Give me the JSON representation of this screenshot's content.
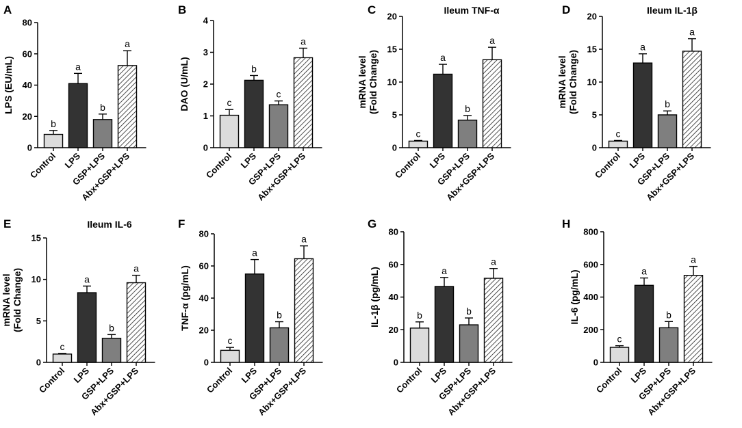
{
  "figure": {
    "categories": [
      "Control",
      "LPS",
      "GSP+LPS",
      "Abx+GSP+LPS"
    ],
    "bar_fills": [
      "#dcdcdc",
      "#333333",
      "#7f7f7f",
      "hatch"
    ],
    "hatch_color": "#222222"
  },
  "chart_data": [
    {
      "type": "bar",
      "letter": "A",
      "title": "",
      "ylabel": [
        "LPS (EU/mL)"
      ],
      "categories": [
        "Control",
        "LPS",
        "GSP+LPS",
        "Abx+GSP+LPS"
      ],
      "values": [
        8.5,
        41,
        18,
        52.5
      ],
      "errors": [
        2.5,
        6.5,
        3.5,
        9.5
      ],
      "letters": [
        "b",
        "a",
        "b",
        "a"
      ],
      "ylim": [
        0,
        80
      ],
      "yticks": [
        0,
        20,
        40,
        60,
        80
      ]
    },
    {
      "type": "bar",
      "letter": "B",
      "title": "",
      "ylabel": [
        "DAO (U/mL)"
      ],
      "categories": [
        "Control",
        "LPS",
        "GSP+LPS",
        "Abx+GSP+LPS"
      ],
      "values": [
        1.02,
        2.12,
        1.35,
        2.83
      ],
      "errors": [
        0.18,
        0.15,
        0.12,
        0.3
      ],
      "letters": [
        "c",
        "b",
        "c",
        "a"
      ],
      "ylim": [
        0,
        4
      ],
      "yticks": [
        0,
        1,
        2,
        3,
        4
      ]
    },
    {
      "type": "bar",
      "letter": "C",
      "title": "Ileum TNF-α",
      "ylabel": [
        "mRNA level",
        "(Fold Change)"
      ],
      "categories": [
        "Control",
        "LPS",
        "GSP+LPS",
        "Abx+GSP+LPS"
      ],
      "values": [
        1,
        11.2,
        4.2,
        13.4
      ],
      "errors": [
        0.1,
        1.5,
        0.7,
        1.9
      ],
      "letters": [
        "c",
        "a",
        "b",
        "a"
      ],
      "ylim": [
        0,
        20
      ],
      "yticks": [
        0,
        5,
        10,
        15,
        20
      ]
    },
    {
      "type": "bar",
      "letter": "D",
      "title": "Ileum IL-1β",
      "ylabel": [
        "mRNA level",
        "(Fold Change)"
      ],
      "categories": [
        "Control",
        "LPS",
        "GSP+LPS",
        "Abx+GSP+LPS"
      ],
      "values": [
        1,
        12.9,
        5,
        14.7
      ],
      "errors": [
        0.1,
        1.4,
        0.6,
        1.9
      ],
      "letters": [
        "c",
        "a",
        "b",
        "a"
      ],
      "ylim": [
        0,
        20
      ],
      "yticks": [
        0,
        5,
        10,
        15,
        20
      ]
    },
    {
      "type": "bar",
      "letter": "E",
      "title": "Ileum IL-6",
      "ylabel": [
        "mRNA level",
        "(Fold Change)"
      ],
      "categories": [
        "Control",
        "LPS",
        "GSP+LPS",
        "Abx+GSP+LPS"
      ],
      "values": [
        1,
        8.4,
        2.9,
        9.6
      ],
      "errors": [
        0.08,
        0.8,
        0.45,
        0.9
      ],
      "letters": [
        "c",
        "a",
        "b",
        "a"
      ],
      "ylim": [
        0,
        15
      ],
      "yticks": [
        0,
        5,
        10,
        15
      ]
    },
    {
      "type": "bar",
      "letter": "F",
      "title": "",
      "ylabel": [
        "TNF-α (pg/mL)"
      ],
      "categories": [
        "Control",
        "LPS",
        "GSP+LPS",
        "Abx+GSP+LPS"
      ],
      "values": [
        7.5,
        55,
        21.5,
        64.5
      ],
      "errors": [
        1.8,
        9,
        3.8,
        8
      ],
      "letters": [
        "c",
        "a",
        "b",
        "a"
      ],
      "ylim": [
        0,
        80
      ],
      "yticks": [
        0,
        20,
        40,
        60,
        80
      ]
    },
    {
      "type": "bar",
      "letter": "G",
      "title": "",
      "ylabel": [
        "IL-1β (pg/mL)"
      ],
      "categories": [
        "Control",
        "LPS",
        "GSP+LPS",
        "Abx+GSP+LPS"
      ],
      "values": [
        21,
        46.5,
        23,
        51.5
      ],
      "errors": [
        3.8,
        5.5,
        4.2,
        6
      ],
      "letters": [
        "b",
        "a",
        "b",
        "a"
      ],
      "ylim": [
        0,
        80
      ],
      "yticks": [
        0,
        20,
        40,
        60,
        80
      ]
    },
    {
      "type": "bar",
      "letter": "H",
      "title": "",
      "ylabel": [
        "IL-6 (pg/mL)"
      ],
      "categories": [
        "Control",
        "LPS",
        "GSP+LPS",
        "Abx+GSP+LPS"
      ],
      "values": [
        92,
        472,
        212,
        533
      ],
      "errors": [
        10,
        45,
        38,
        55
      ],
      "letters": [
        "c",
        "a",
        "b",
        "a"
      ],
      "ylim": [
        0,
        800
      ],
      "yticks": [
        0,
        200,
        400,
        600,
        800
      ]
    }
  ]
}
